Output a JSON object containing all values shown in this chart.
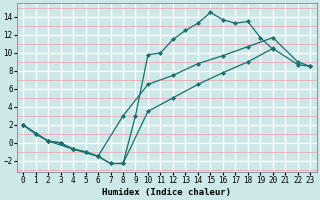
{
  "xlabel": "Humidex (Indice chaleur)",
  "bg_color": "#cce8e8",
  "grid_color_major": "#ffffff",
  "grid_color_minor": "#f0a0a0",
  "line_color": "#1a6e6e",
  "xlim": [
    -0.5,
    23.5
  ],
  "ylim": [
    -3.2,
    15.5
  ],
  "xticks": [
    0,
    1,
    2,
    3,
    4,
    5,
    6,
    7,
    8,
    9,
    10,
    11,
    12,
    13,
    14,
    15,
    16,
    17,
    18,
    19,
    20,
    21,
    22,
    23
  ],
  "yticks": [
    -2,
    0,
    2,
    4,
    6,
    8,
    10,
    12,
    14
  ],
  "line1_x": [
    0,
    1,
    2,
    3,
    4,
    5,
    6,
    7,
    8,
    9,
    10,
    11,
    12,
    13,
    14,
    15,
    16,
    17,
    18,
    19,
    20
  ],
  "line1_y": [
    2.0,
    1.0,
    0.2,
    0.0,
    -0.7,
    -1.0,
    -1.5,
    -2.3,
    -2.3,
    3.0,
    9.8,
    10.0,
    11.5,
    12.5,
    13.3,
    14.5,
    13.7,
    13.3,
    13.5,
    11.7,
    10.4
  ],
  "line2_x": [
    0,
    1,
    2,
    3,
    4,
    5,
    6,
    7,
    8,
    10,
    12,
    14,
    16,
    18,
    20,
    22,
    23
  ],
  "line2_y": [
    2.0,
    1.0,
    0.2,
    0.0,
    -0.7,
    -1.0,
    -1.5,
    -2.3,
    -2.3,
    3.5,
    5.0,
    6.5,
    7.8,
    9.0,
    10.5,
    8.7,
    8.5
  ],
  "line3_x": [
    0,
    2,
    4,
    6,
    8,
    10,
    12,
    14,
    16,
    18,
    20,
    22,
    23
  ],
  "line3_y": [
    2.0,
    0.2,
    -0.7,
    -1.5,
    3.0,
    6.5,
    7.5,
    8.8,
    9.7,
    10.7,
    11.7,
    9.0,
    8.5
  ]
}
